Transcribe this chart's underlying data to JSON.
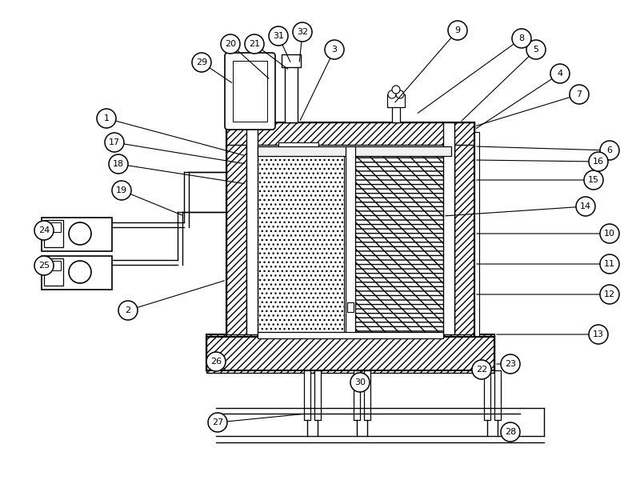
{
  "bg_color": "#ffffff",
  "line_color": "#000000",
  "figsize": [
    8.0,
    6.05
  ],
  "dpi": 100,
  "labels": [
    [
      "1",
      133,
      148
    ],
    [
      "2",
      160,
      388
    ],
    [
      "3",
      418,
      62
    ],
    [
      "4",
      700,
      92
    ],
    [
      "5",
      670,
      62
    ],
    [
      "6",
      762,
      188
    ],
    [
      "7",
      724,
      118
    ],
    [
      "8",
      652,
      48
    ],
    [
      "9",
      572,
      38
    ],
    [
      "10",
      762,
      292
    ],
    [
      "11",
      762,
      330
    ],
    [
      "12",
      762,
      368
    ],
    [
      "13",
      748,
      418
    ],
    [
      "14",
      732,
      258
    ],
    [
      "15",
      742,
      225
    ],
    [
      "16",
      748,
      202
    ],
    [
      "17",
      143,
      178
    ],
    [
      "18",
      148,
      205
    ],
    [
      "19",
      152,
      238
    ],
    [
      "20",
      288,
      55
    ],
    [
      "21",
      318,
      55
    ],
    [
      "22",
      602,
      462
    ],
    [
      "23",
      638,
      455
    ],
    [
      "24",
      55,
      288
    ],
    [
      "25",
      55,
      332
    ],
    [
      "26",
      270,
      452
    ],
    [
      "27",
      272,
      528
    ],
    [
      "28",
      638,
      540
    ],
    [
      "29",
      252,
      78
    ],
    [
      "30",
      450,
      478
    ],
    [
      "31",
      348,
      45
    ],
    [
      "32",
      378,
      40
    ]
  ]
}
